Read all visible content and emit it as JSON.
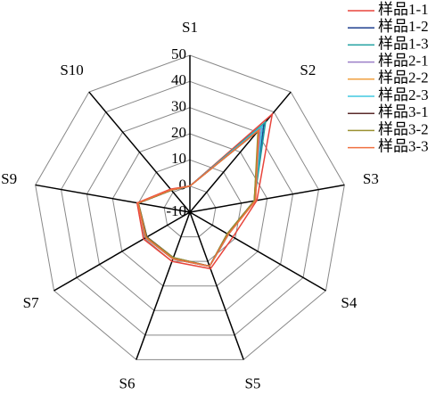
{
  "chart_data": {
    "type": "radar",
    "categories": [
      "S1",
      "S2",
      "S3",
      "S4",
      "S5",
      "S6",
      "S7",
      "S9",
      "S10"
    ],
    "rlim": [
      -10,
      50
    ],
    "rticks": [
      -10,
      0,
      10,
      20,
      30,
      40,
      50
    ],
    "grid": true,
    "legend": "upper right",
    "series": [
      {
        "name": "样品1-1",
        "color": "#e8453c",
        "values": [
          0,
          39,
          16,
          9,
          13,
          10,
          10.5,
          10.5,
          1.5
        ]
      },
      {
        "name": "样品1-2",
        "color": "#1f3f8f",
        "values": [
          0,
          34,
          15,
          7,
          12,
          9,
          9.5,
          10,
          1
        ]
      },
      {
        "name": "样品1-3",
        "color": "#20a0a0",
        "values": [
          0,
          35,
          15,
          7,
          12,
          9,
          9.5,
          10,
          1
        ]
      },
      {
        "name": "样品2-1",
        "color": "#9b7fc7",
        "values": [
          0,
          32,
          15,
          6.5,
          12,
          8.5,
          9,
          10,
          1
        ]
      },
      {
        "name": "样品2-2",
        "color": "#f0a040",
        "values": [
          0,
          31,
          15,
          6.5,
          12,
          8.5,
          9,
          10,
          1
        ]
      },
      {
        "name": "样品2-3",
        "color": "#40c8e0",
        "values": [
          0,
          33,
          15,
          6.5,
          12,
          8.5,
          9,
          10,
          1
        ]
      },
      {
        "name": "样品3-1",
        "color": "#5a2a2a",
        "values": [
          0,
          31,
          15,
          6.5,
          12,
          8.5,
          9,
          10,
          1
        ]
      },
      {
        "name": "样品3-2",
        "color": "#9a9030",
        "values": [
          0,
          30.5,
          15,
          6.5,
          12,
          8.5,
          9.2,
          10,
          1
        ]
      },
      {
        "name": "样品3-3",
        "color": "#f07040",
        "values": [
          0,
          31,
          15.5,
          7,
          12,
          9,
          9.5,
          10.2,
          1.2
        ]
      }
    ]
  }
}
